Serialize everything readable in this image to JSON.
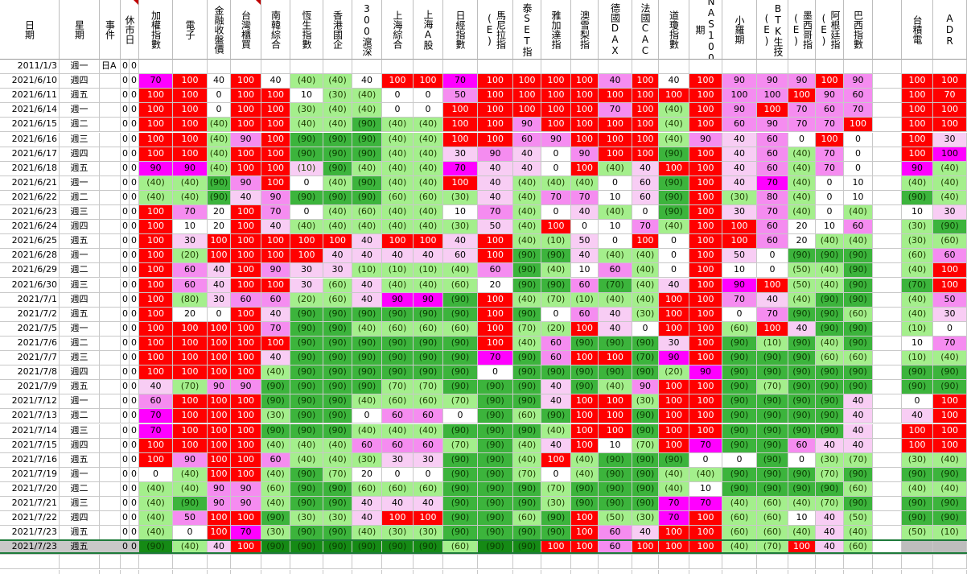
{
  "colors": {
    "L": "#a4ef8c",
    "M": "#3cb43c",
    "D": "#158a15",
    "R": "#ff0000",
    "P": "#ff00ff",
    "Q": "#f58cf0",
    "S": "#f8cdf4",
    "W": "#ffffff",
    "G": "#bdbdbd"
  },
  "headers": [
    {
      "key": "date",
      "label": "日期"
    },
    {
      "key": "week",
      "label": "星期"
    },
    {
      "key": "event",
      "label": "事件"
    },
    {
      "key": "holiday",
      "label": "休市日"
    },
    {
      "key": "c0",
      "label": "加權指數"
    },
    {
      "key": "c1",
      "label": "電子"
    },
    {
      "key": "c2",
      "label": "金融收盤價"
    },
    {
      "key": "c3",
      "label": "台灣櫃買"
    },
    {
      "key": "c4",
      "label": "南韓綜合"
    },
    {
      "key": "c5",
      "label": "恆生指數"
    },
    {
      "key": "c6",
      "label": "香港國企"
    },
    {
      "key": "c7",
      "label": "300滬深"
    },
    {
      "key": "c8",
      "label": "上海綜合"
    },
    {
      "key": "c9",
      "label": "上海A股"
    },
    {
      "key": "c10",
      "label": "日經指數"
    },
    {
      "key": "c11",
      "label": "馬尼拉指(E)"
    },
    {
      "key": "c12",
      "label": "泰SET指"
    },
    {
      "key": "c13",
      "label": "雅加達指"
    },
    {
      "key": "c14",
      "label": "澳雪梨指"
    },
    {
      "key": "c15",
      "label": "德國DAX"
    },
    {
      "key": "c16",
      "label": "法國CAC"
    },
    {
      "key": "c17",
      "label": "道瓊指數"
    },
    {
      "key": "c18",
      "label": "NAS100期"
    },
    {
      "key": "c19",
      "label": "小羅期"
    },
    {
      "key": "c20",
      "label": "BTK生技(E)"
    },
    {
      "key": "c21",
      "label": "墨西哥指(E)"
    },
    {
      "key": "c22",
      "label": "阿根廷指(E)"
    },
    {
      "key": "c23",
      "label": "巴西指數"
    },
    {
      "key": "blank",
      "label": ""
    },
    {
      "key": "c24",
      "label": "台積電"
    },
    {
      "key": "c25",
      "label": "ADR"
    }
  ],
  "first_row": {
    "date": "2011/1/3",
    "week": "週一",
    "event": "日A",
    "h1": "0",
    "h2": "0"
  },
  "rows": [
    {
      "date": "2021/6/10",
      "week": "週四",
      "v": [
        "70",
        "100",
        "40",
        "100",
        "40",
        "(40)",
        "(40)",
        "40",
        "100",
        "100",
        "70",
        "100",
        "100",
        "100",
        "100",
        "40",
        "100",
        "40",
        "100",
        "90",
        "90",
        "90",
        "100",
        "90",
        "100",
        "100"
      ],
      "c": "PRWRWLLWRRPRRRRQRWRQQQRQRR"
    },
    {
      "date": "2021/6/11",
      "week": "週五",
      "v": [
        "100",
        "100",
        "0",
        "100",
        "100",
        "10",
        "(30)",
        "(40)",
        "0",
        "0",
        "50",
        "100",
        "100",
        "100",
        "100",
        "100",
        "100",
        "100",
        "100",
        "100",
        "100",
        "100",
        "90",
        "60",
        "100",
        "70"
      ],
      "c": "RRWRRWLLWWQRRRRRRRRQQRQQRR"
    },
    {
      "date": "2021/6/14",
      "week": "週一",
      "v": [
        "100",
        "100",
        "0",
        "100",
        "100",
        "(30)",
        "(40)",
        "(40)",
        "0",
        "0",
        "100",
        "100",
        "100",
        "100",
        "100",
        "70",
        "100",
        "(40)",
        "100",
        "90",
        "100",
        "70",
        "60",
        "70",
        "100",
        "100"
      ],
      "c": "RRWRRLLLWWRRRRRQRLRQRQQQRR"
    },
    {
      "date": "2021/6/15",
      "week": "週二",
      "v": [
        "100",
        "100",
        "(40)",
        "100",
        "100",
        "(40)",
        "(40)",
        "(90)",
        "(40)",
        "(40)",
        "100",
        "100",
        "90",
        "100",
        "100",
        "100",
        "100",
        "(40)",
        "100",
        "60",
        "90",
        "70",
        "70",
        "100",
        "100",
        "100"
      ],
      "c": "RRLRRLLMLLRRQRRRRLRQQQQRRR"
    },
    {
      "date": "2021/6/16",
      "week": "週三",
      "v": [
        "100",
        "100",
        "(40)",
        "90",
        "100",
        "(90)",
        "(90)",
        "(90)",
        "(40)",
        "(40)",
        "100",
        "100",
        "60",
        "90",
        "100",
        "100",
        "100",
        "(40)",
        "90",
        "40",
        "60",
        "0",
        "100",
        "0",
        "100",
        "30"
      ],
      "c": "RRLQRMMMLLRRQQRRRLQSQWRWRS"
    },
    {
      "date": "2021/6/17",
      "week": "週四",
      "v": [
        "100",
        "100",
        "(40)",
        "100",
        "100",
        "(90)",
        "(90)",
        "(90)",
        "(40)",
        "(40)",
        "30",
        "90",
        "40",
        "0",
        "90",
        "100",
        "100",
        "(90)",
        "100",
        "40",
        "60",
        "(40)",
        "70",
        "0",
        "100",
        "100"
      ],
      "c": "RRLRRMMMLLSQSWQRRMRSQLQWRP"
    },
    {
      "date": "2021/6/18",
      "week": "週五",
      "v": [
        "90",
        "90",
        "(40)",
        "100",
        "100",
        "(10)",
        "(90)",
        "(40)",
        "(40)",
        "(40)",
        "70",
        "40",
        "40",
        "0",
        "100",
        "(40)",
        "40",
        "100",
        "100",
        "40",
        "60",
        "(40)",
        "70",
        "0",
        "90",
        "(40)"
      ],
      "c": "PPLRRSMLLLPSSWRLSRRSQLQWPL"
    },
    {
      "date": "2021/6/21",
      "week": "週一",
      "v": [
        "(40)",
        "(40)",
        "(90)",
        "90",
        "100",
        "0",
        "(40)",
        "(90)",
        "(40)",
        "(40)",
        "100",
        "40",
        "(40)",
        "(40)",
        "(40)",
        "0",
        "60",
        "(90)",
        "100",
        "40",
        "70",
        "(40)",
        "0",
        "10",
        "(40)",
        "(40)"
      ],
      "c": "LLMQRWLMLLRSLLLWSMRSPLWWLL"
    },
    {
      "date": "2021/6/22",
      "week": "週二",
      "v": [
        "(40)",
        "(40)",
        "(90)",
        "40",
        "90",
        "(90)",
        "(90)",
        "(90)",
        "(60)",
        "(60)",
        "(30)",
        "40",
        "(40)",
        "70",
        "70",
        "10",
        "60",
        "(90)",
        "100",
        "(30)",
        "80",
        "(40)",
        "0",
        "10",
        "(90)",
        "(40)"
      ],
      "c": "LLMSQMMMLLLSLQQWSMRLQLWWML"
    },
    {
      "date": "2021/6/23",
      "week": "週三",
      "v": [
        "100",
        "70",
        "20",
        "100",
        "70",
        "0",
        "(40)",
        "(60)",
        "(40)",
        "(40)",
        "10",
        "70",
        "(40)",
        "0",
        "40",
        "(40)",
        "0",
        "(90)",
        "100",
        "30",
        "70",
        "(40)",
        "0",
        "(40)",
        "10",
        "30"
      ],
      "c": "RQWRQWLLLLWQLWSLWMRSQLWLWS"
    },
    {
      "date": "2021/6/24",
      "week": "週四",
      "v": [
        "100",
        "10",
        "20",
        "100",
        "40",
        "(40)",
        "(40)",
        "(40)",
        "(40)",
        "(40)",
        "(30)",
        "50",
        "(40)",
        "100",
        "0",
        "10",
        "70",
        "(40)",
        "100",
        "100",
        "60",
        "20",
        "10",
        "60",
        "(30)",
        "(90)"
      ],
      "c": "RWWRSLLLLLLSLRWWQLRRQWWQLM"
    },
    {
      "date": "2021/6/25",
      "week": "週五",
      "v": [
        "100",
        "30",
        "100",
        "100",
        "100",
        "100",
        "100",
        "40",
        "100",
        "100",
        "40",
        "100",
        "(40)",
        "(10)",
        "50",
        "0",
        "100",
        "0",
        "100",
        "100",
        "60",
        "20",
        "(40)",
        "(40)",
        "(30)",
        "(60)"
      ],
      "c": "RSRRRRRSRRSRLLSWRWRRQWLLLL"
    },
    {
      "date": "2021/6/28",
      "week": "週一",
      "v": [
        "100",
        "(20)",
        "100",
        "100",
        "100",
        "100",
        "40",
        "40",
        "40",
        "40",
        "60",
        "100",
        "(90)",
        "(90)",
        "40",
        "(40)",
        "(40)",
        "0",
        "100",
        "50",
        "0",
        "(90)",
        "(90)",
        "(90)",
        "(60)",
        "60"
      ],
      "c": "RLRRRRSSSSSRMMSLLWRSWMMMLQ"
    },
    {
      "date": "2021/6/29",
      "week": "週二",
      "v": [
        "100",
        "60",
        "40",
        "100",
        "90",
        "30",
        "30",
        "(10)",
        "(10)",
        "(10)",
        "(40)",
        "60",
        "(90)",
        "(40)",
        "10",
        "60",
        "(40)",
        "0",
        "100",
        "10",
        "0",
        "(50)",
        "(40)",
        "(90)",
        "(40)",
        "100"
      ],
      "c": "RQSRQSSLLLLQMLWQLWRWWLLMLR"
    },
    {
      "date": "2021/6/30",
      "week": "週三",
      "v": [
        "100",
        "60",
        "40",
        "100",
        "100",
        "30",
        "(60)",
        "40",
        "(40)",
        "(40)",
        "(60)",
        "20",
        "(90)",
        "(90)",
        "60",
        "(70)",
        "(40)",
        "40",
        "100",
        "90",
        "100",
        "(50)",
        "(40)",
        "(90)",
        "(70)",
        "100"
      ],
      "c": "RQSRRSLSLLLWMMQMLSRPRLLMMR"
    },
    {
      "date": "2021/7/1",
      "week": "週四",
      "v": [
        "100",
        "(80)",
        "30",
        "60",
        "60",
        "(20)",
        "(60)",
        "40",
        "90",
        "90",
        "(90)",
        "100",
        "(40)",
        "(70)",
        "(10)",
        "(40)",
        "(40)",
        "100",
        "100",
        "70",
        "40",
        "(40)",
        "(90)",
        "(90)",
        "(40)",
        "50"
      ],
      "c": "RLSQQLLSPPMRLLLLLRRQSLMMLQ"
    },
    {
      "date": "2021/7/2",
      "week": "週五",
      "v": [
        "100",
        "20",
        "0",
        "100",
        "40",
        "(90)",
        "(90)",
        "(90)",
        "(90)",
        "(90)",
        "(90)",
        "100",
        "(90)",
        "0",
        "60",
        "40",
        "(30)",
        "100",
        "100",
        "0",
        "70",
        "(90)",
        "(90)",
        "(60)",
        "(40)",
        "30"
      ],
      "c": "RWWRSMMMMMMRMWQSLRRWQMMLLS"
    },
    {
      "date": "2021/7/5",
      "week": "週一",
      "v": [
        "100",
        "100",
        "100",
        "100",
        "70",
        "(90)",
        "(90)",
        "(40)",
        "(60)",
        "(60)",
        "(60)",
        "100",
        "(70)",
        "(20)",
        "100",
        "40",
        "0",
        "100",
        "100",
        "(60)",
        "100",
        "40",
        "(90)",
        "(90)",
        "(10)",
        "0"
      ],
      "c": "RRRRQMMLLLLRLLRSWRRLRSMMLW"
    },
    {
      "date": "2021/7/6",
      "week": "週二",
      "v": [
        "100",
        "100",
        "100",
        "100",
        "100",
        "(90)",
        "(90)",
        "(90)",
        "(90)",
        "(90)",
        "(90)",
        "100",
        "(40)",
        "60",
        "(90)",
        "(90)",
        "(90)",
        "30",
        "100",
        "(90)",
        "(10)",
        "(90)",
        "(40)",
        "(90)",
        "10",
        "70"
      ],
      "c": "RRRRRMMMMMMRLQMMMSRMLMLMWQ"
    },
    {
      "date": "2021/7/7",
      "week": "週三",
      "v": [
        "100",
        "100",
        "100",
        "100",
        "40",
        "(90)",
        "(90)",
        "(90)",
        "(90)",
        "(90)",
        "(90)",
        "70",
        "(90)",
        "60",
        "100",
        "100",
        "(70)",
        "90",
        "100",
        "(90)",
        "(90)",
        "(90)",
        "(60)",
        "(60)",
        "(10)",
        "(40)"
      ],
      "c": "RRRRSMMMMMMPMQRRMPRMMMLLLL"
    },
    {
      "date": "2021/7/8",
      "week": "週四",
      "v": [
        "100",
        "100",
        "100",
        "100",
        "(40)",
        "(90)",
        "(90)",
        "(90)",
        "(90)",
        "(90)",
        "(90)",
        "0",
        "(90)",
        "(90)",
        "(90)",
        "(90)",
        "(90)",
        "(20)",
        "90",
        "(90)",
        "(90)",
        "(90)",
        "(90)",
        "(90)",
        "(90)",
        "(90)"
      ],
      "c": "RRRRLMMMMMMWMMMMMLPMMMMMMM"
    },
    {
      "date": "2021/7/9",
      "week": "週五",
      "v": [
        "40",
        "(70)",
        "90",
        "90",
        "(90)",
        "(90)",
        "(90)",
        "(90)",
        "(70)",
        "(70)",
        "(90)",
        "(90)",
        "(90)",
        "40",
        "(90)",
        "(40)",
        "90",
        "100",
        "100",
        "(90)",
        "(70)",
        "(90)",
        "(90)",
        "(90)",
        "(90)",
        "(90)"
      ],
      "c": "SLQQMMMMLLMMMSMLQRRMLMMMMM"
    },
    {
      "date": "2021/7/12",
      "week": "週一",
      "v": [
        "60",
        "100",
        "100",
        "100",
        "(90)",
        "(90)",
        "(90)",
        "(40)",
        "(60)",
        "(60)",
        "(70)",
        "(90)",
        "(90)",
        "40",
        "100",
        "100",
        "(30)",
        "100",
        "100",
        "(90)",
        "(90)",
        "(90)",
        "(90)",
        "40",
        "0",
        "100"
      ],
      "c": "QRRRMMMLLLLMMSRRLRRMMMMSWR"
    },
    {
      "date": "2021/7/13",
      "week": "週二",
      "v": [
        "70",
        "100",
        "100",
        "100",
        "(30)",
        "(90)",
        "(90)",
        "0",
        "60",
        "60",
        "0",
        "(90)",
        "(60)",
        "(90)",
        "100",
        "100",
        "(90)",
        "100",
        "100",
        "(90)",
        "(90)",
        "(90)",
        "(90)",
        "40",
        "40",
        "100"
      ],
      "c": "PRRRLMMWQQWMLMRRMRRMMMMSSR"
    },
    {
      "date": "2021/7/14",
      "week": "週三",
      "v": [
        "70",
        "100",
        "100",
        "100",
        "(90)",
        "(90)",
        "(90)",
        "(40)",
        "(40)",
        "(40)",
        "(90)",
        "(90)",
        "(90)",
        "(40)",
        "100",
        "100",
        "(90)",
        "100",
        "100",
        "(90)",
        "(90)",
        "(90)",
        "(90)",
        "40",
        "100",
        "100"
      ],
      "c": "PRRRMMMLLLMMMLRRMRRMMMMSRR"
    },
    {
      "date": "2021/7/15",
      "week": "週四",
      "v": [
        "100",
        "100",
        "100",
        "100",
        "(40)",
        "(40)",
        "(40)",
        "60",
        "60",
        "60",
        "(70)",
        "(90)",
        "(40)",
        "40",
        "100",
        "10",
        "(70)",
        "100",
        "70",
        "(90)",
        "(90)",
        "60",
        "40",
        "40",
        "100",
        "100"
      ],
      "c": "RRRRLLLQQQLMLSRWLRPMMQSSRR"
    },
    {
      "date": "2021/7/16",
      "week": "週五",
      "v": [
        "100",
        "90",
        "100",
        "100",
        "60",
        "(40)",
        "(40)",
        "(30)",
        "30",
        "30",
        "(90)",
        "(90)",
        "(40)",
        "100",
        "(40)",
        "(90)",
        "(90)",
        "(90)",
        "0",
        "0",
        "(90)",
        "0",
        "(30)",
        "(70)",
        "(30)",
        "(40)"
      ],
      "c": "RQRRQLLLSSMMLRLMMMWWMWLLLL"
    },
    {
      "date": "2021/7/19",
      "week": "週一",
      "v": [
        "0",
        "(40)",
        "100",
        "100",
        "(40)",
        "(90)",
        "(70)",
        "20",
        "0",
        "0",
        "(90)",
        "(90)",
        "(70)",
        "0",
        "(40)",
        "(90)",
        "(90)",
        "(40)",
        "(40)",
        "(90)",
        "(90)",
        "(90)",
        "(70)",
        "(90)",
        "(90)",
        "(90)"
      ],
      "c": "WLRRLMLWWWMMLWLMMLLMMMLMMM"
    },
    {
      "date": "2021/7/20",
      "week": "週二",
      "v": [
        "(40)",
        "(40)",
        "90",
        "90",
        "(60)",
        "(90)",
        "(90)",
        "(60)",
        "(60)",
        "(60)",
        "(90)",
        "(90)",
        "(90)",
        "(70)",
        "(90)",
        "(90)",
        "(90)",
        "(40)",
        "10",
        "(90)",
        "(90)",
        "(90)",
        "(90)",
        "(60)",
        "(40)",
        "(40)"
      ],
      "c": "LLQQLMMLLLMMMLMMMLWMMMMLLL"
    },
    {
      "date": "2021/7/21",
      "week": "週三",
      "v": [
        "(40)",
        "(90)",
        "90",
        "90",
        "(40)",
        "(90)",
        "(90)",
        "40",
        "40",
        "40",
        "(90)",
        "(90)",
        "(90)",
        "(30)",
        "(90)",
        "(90)",
        "(90)",
        "70",
        "70",
        "(40)",
        "(60)",
        "(40)",
        "(70)",
        "(90)",
        "(90)",
        "(90)"
      ],
      "c": "LMQQLMMSSSMMMLMMMPPLLLLMMM"
    },
    {
      "date": "2021/7/22",
      "week": "週四",
      "v": [
        "(40)",
        "50",
        "100",
        "100",
        "(90)",
        "(30)",
        "(30)",
        "40",
        "100",
        "100",
        "(90)",
        "(90)",
        "(60)",
        "(90)",
        "100",
        "(50)",
        "(30)",
        "70",
        "100",
        "(60)",
        "(60)",
        "10",
        "40",
        "(50)",
        "(90)",
        "(90)"
      ],
      "c": "LQRRMLLSRRMMLMRLLPRLLWSLMM"
    },
    {
      "date": "2021/7/23",
      "week": "週五",
      "v": [
        "(40)",
        "0",
        "100",
        "70",
        "(30)",
        "(90)",
        "(90)",
        "(40)",
        "(30)",
        "(30)",
        "(90)",
        "(90)",
        "(90)",
        "(90)",
        "100",
        "60",
        "40",
        "100",
        "100",
        "(60)",
        "(60)",
        "(40)",
        "40",
        "(40)",
        "(50)",
        "(10)"
      ],
      "c": "LWRPLMMLLLMMMMRQSRRLLLSLLL"
    },
    {
      "date": "2021/7/23",
      "week": "週五",
      "v": [
        "(90)",
        "(40)",
        "40",
        "100",
        "(90)",
        "(90)",
        "(90)",
        "(90)",
        "(90)",
        "(90)",
        "(60)",
        "(90)",
        "(90)",
        "100",
        "100",
        "60",
        "100",
        "100",
        "100",
        "(40)",
        "(70)",
        "100",
        "40",
        "(60)",
        "",
        ""
      ],
      "c": "DLSRDDDDDDLDDRRQRRRLLRSLGG"
    }
  ]
}
